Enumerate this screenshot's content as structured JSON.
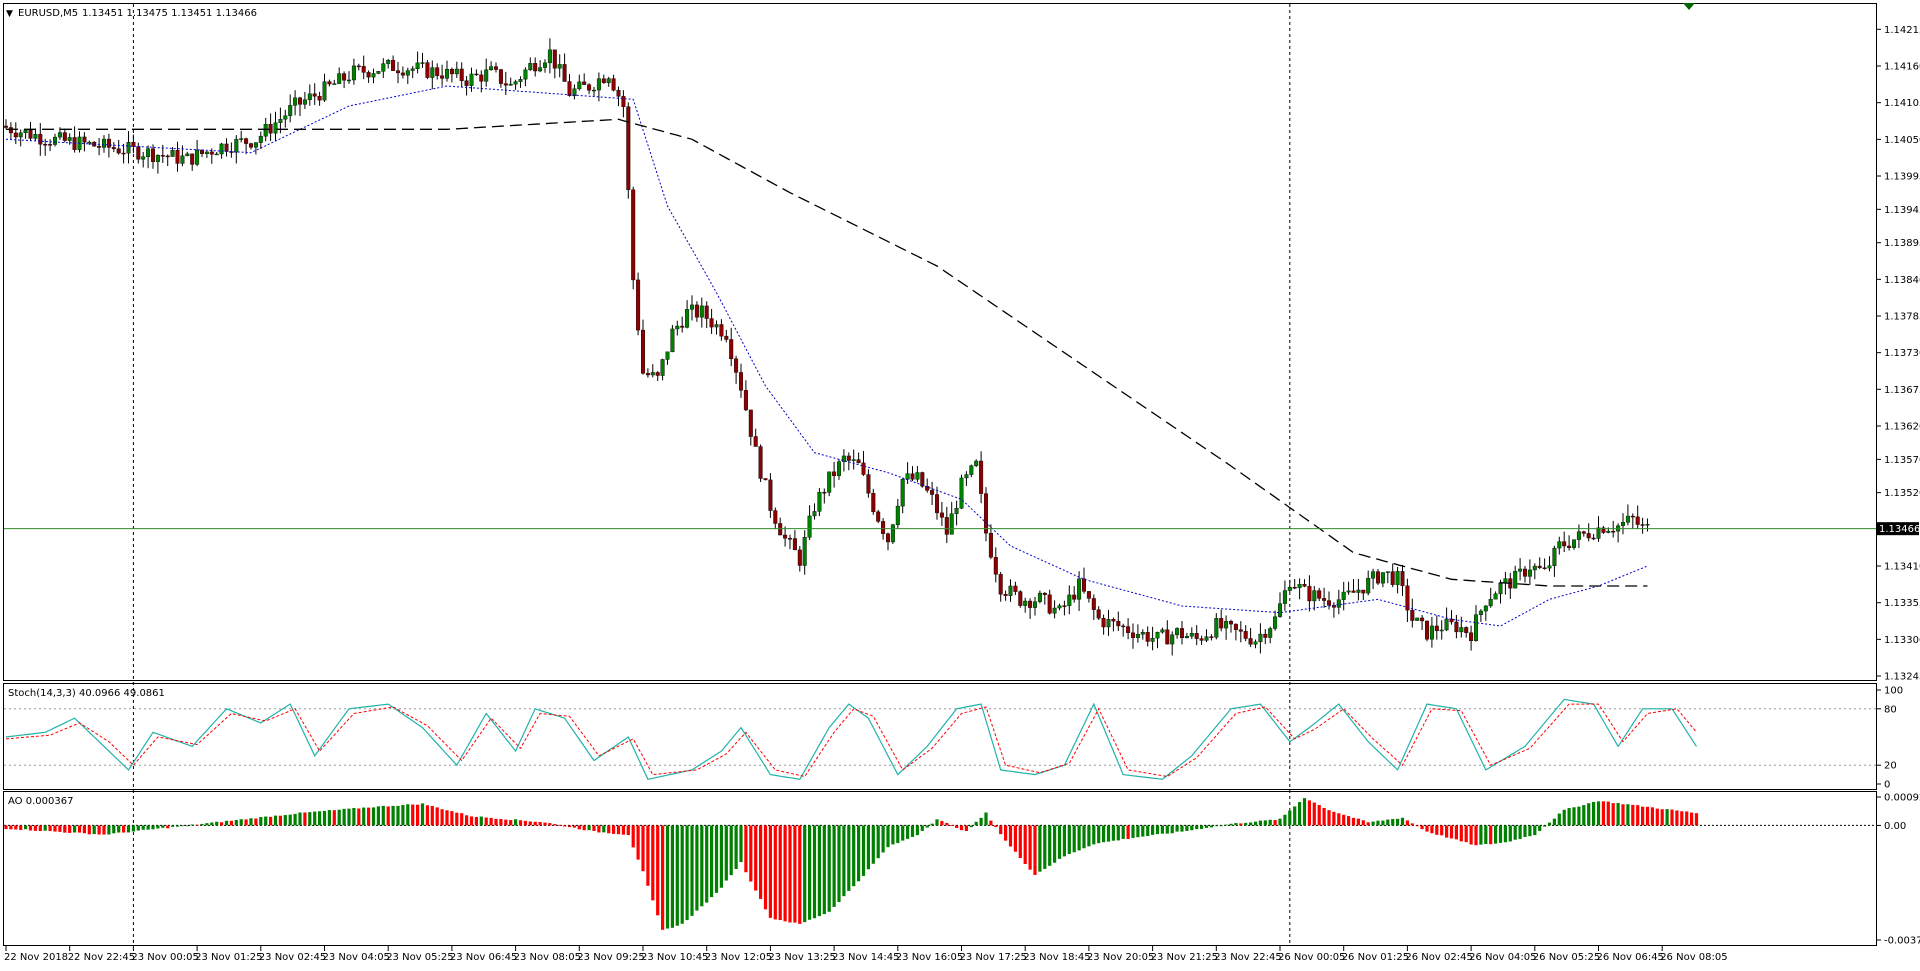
{
  "window": {
    "symbol_header": "EURUSD,M5",
    "ohlc_header": "1.13451 1.13475 1.13451 1.13466"
  },
  "colors": {
    "bull_candle": "#008000",
    "bear_candle": "#8b0000",
    "sma_fast": "#0000cc",
    "sma_slow": "#000000",
    "bid_line": "#2e8b2e",
    "stoch_main": "#20b2aa",
    "stoch_signal": "#ff0000",
    "ao_up": "#008000",
    "ao_down": "#ff0000",
    "trade_marker": "#006400"
  },
  "chart_data": {
    "type": "candlestick",
    "instrument": "EURUSD",
    "timeframe": "M5",
    "price_axis": {
      "ticks": [
        "1.14215",
        "1.14160",
        "1.14105",
        "1.14050",
        "1.13995",
        "1.13945",
        "1.13895",
        "1.13840",
        "1.13785",
        "1.13730",
        "1.13675",
        "1.13620",
        "1.13570",
        "1.13520",
        "1.13410",
        "1.13355",
        "1.13300",
        "1.13245"
      ],
      "current_price": "1.13466",
      "range": [
        1.13245,
        1.1425
      ]
    },
    "time_axis": {
      "labels": [
        "22 Nov 2018",
        "22 Nov 22:45",
        "23 Nov 00:05",
        "23 Nov 01:25",
        "23 Nov 02:45",
        "23 Nov 04:05",
        "23 Nov 05:25",
        "23 Nov 06:45",
        "23 Nov 08:05",
        "23 Nov 09:25",
        "23 Nov 10:45",
        "23 Nov 12:05",
        "23 Nov 13:25",
        "23 Nov 14:45",
        "23 Nov 16:05",
        "23 Nov 17:25",
        "23 Nov 18:45",
        "23 Nov 20:05",
        "23 Nov 21:25",
        "23 Nov 22:45",
        "26 Nov 00:05",
        "26 Nov 01:25",
        "26 Nov 02:45",
        "26 Nov 04:05",
        "26 Nov 05:25",
        "26 Nov 06:45",
        "26 Nov 08:05"
      ],
      "period_separators": [
        "23 Nov 00:00",
        "26 Nov 00:00"
      ]
    },
    "price_path": [
      [
        0,
        1.1407
      ],
      [
        10,
        1.1405
      ],
      [
        20,
        1.1404
      ],
      [
        30,
        1.1403
      ],
      [
        38,
        1.1402
      ],
      [
        45,
        1.1404
      ],
      [
        52,
        1.1405
      ],
      [
        60,
        1.141
      ],
      [
        65,
        1.1412
      ],
      [
        72,
        1.1415
      ],
      [
        80,
        1.1416
      ],
      [
        90,
        1.1415
      ],
      [
        95,
        1.1414
      ],
      [
        100,
        1.1415
      ],
      [
        104,
        1.1413
      ],
      [
        108,
        1.1416
      ],
      [
        112,
        1.1418
      ],
      [
        116,
        1.1412
      ],
      [
        120,
        1.1413
      ],
      [
        124,
        1.1415
      ],
      [
        127,
        1.141
      ],
      [
        129,
        1.1384
      ],
      [
        131,
        1.137
      ],
      [
        134,
        1.1369
      ],
      [
        137,
        1.1376
      ],
      [
        140,
        1.1379
      ],
      [
        143,
        1.1379
      ],
      [
        146,
        1.1377
      ],
      [
        148,
        1.1376
      ],
      [
        151,
        1.1368
      ],
      [
        154,
        1.1358
      ],
      [
        157,
        1.135
      ],
      [
        160,
        1.1345
      ],
      [
        163,
        1.1342
      ],
      [
        166,
        1.135
      ],
      [
        169,
        1.1354
      ],
      [
        172,
        1.1357
      ],
      [
        175,
        1.1356
      ],
      [
        178,
        1.135
      ],
      [
        181,
        1.1345
      ],
      [
        184,
        1.1354
      ],
      [
        187,
        1.1354
      ],
      [
        190,
        1.1351
      ],
      [
        193,
        1.1346
      ],
      [
        196,
        1.1353
      ],
      [
        199,
        1.1356
      ],
      [
        201,
        1.1346
      ],
      [
        204,
        1.1338
      ],
      [
        208,
        1.1336
      ],
      [
        212,
        1.1336
      ],
      [
        216,
        1.1334
      ],
      [
        220,
        1.1338
      ],
      [
        224,
        1.1333
      ],
      [
        228,
        1.1332
      ],
      [
        232,
        1.1331
      ],
      [
        236,
        1.133
      ],
      [
        240,
        1.1331
      ],
      [
        244,
        1.133
      ],
      [
        248,
        1.1332
      ],
      [
        252,
        1.1331
      ],
      [
        256,
        1.133
      ],
      [
        260,
        1.1333
      ],
      [
        263,
        1.1339
      ],
      [
        266,
        1.1337
      ],
      [
        270,
        1.1336
      ],
      [
        274,
        1.1336
      ],
      [
        278,
        1.1338
      ],
      [
        282,
        1.134
      ],
      [
        285,
        1.1339
      ],
      [
        288,
        1.1333
      ],
      [
        291,
        1.1331
      ],
      [
        294,
        1.1332
      ],
      [
        297,
        1.1332
      ],
      [
        300,
        1.1331
      ],
      [
        303,
        1.1336
      ],
      [
        306,
        1.1338
      ],
      [
        309,
        1.1339
      ],
      [
        312,
        1.1341
      ],
      [
        315,
        1.134
      ],
      [
        318,
        1.1344
      ],
      [
        321,
        1.1345
      ],
      [
        324,
        1.1346
      ],
      [
        327,
        1.1347
      ],
      [
        330,
        1.1347
      ],
      [
        333,
        1.1348
      ],
      [
        335,
        1.13466
      ]
    ],
    "sma_fast_path": [
      [
        0,
        1.1405
      ],
      [
        50,
        1.1403
      ],
      [
        70,
        1.141
      ],
      [
        90,
        1.1413
      ],
      [
        128,
        1.1411
      ],
      [
        135,
        1.1395
      ],
      [
        145,
        1.1382
      ],
      [
        155,
        1.1368
      ],
      [
        165,
        1.1358
      ],
      [
        180,
        1.1355
      ],
      [
        195,
        1.1351
      ],
      [
        205,
        1.1344
      ],
      [
        220,
        1.1339
      ],
      [
        240,
        1.1335
      ],
      [
        260,
        1.1334
      ],
      [
        280,
        1.1336
      ],
      [
        295,
        1.1333
      ],
      [
        305,
        1.1332
      ],
      [
        315,
        1.1336
      ],
      [
        325,
        1.1338
      ],
      [
        335,
        1.1341
      ]
    ],
    "sma_slow_path": [
      [
        0,
        1.14065
      ],
      [
        60,
        1.14065
      ],
      [
        90,
        1.14065
      ],
      [
        125,
        1.1408
      ],
      [
        140,
        1.1405
      ],
      [
        160,
        1.1397
      ],
      [
        190,
        1.1386
      ],
      [
        220,
        1.1371
      ],
      [
        250,
        1.1356
      ],
      [
        275,
        1.1343
      ],
      [
        295,
        1.1339
      ],
      [
        315,
        1.1338
      ],
      [
        335,
        1.1338
      ]
    ],
    "stochastic": {
      "label": "Stoch(14,3,3) 40.0966 49.0861",
      "levels_text": [
        "100",
        "80",
        "20",
        "0"
      ],
      "levels": [
        100,
        80,
        20,
        0
      ],
      "main_path": [
        [
          0,
          50
        ],
        [
          8,
          55
        ],
        [
          14,
          70
        ],
        [
          20,
          40
        ],
        [
          25,
          15
        ],
        [
          30,
          55
        ],
        [
          38,
          40
        ],
        [
          45,
          80
        ],
        [
          52,
          65
        ],
        [
          58,
          85
        ],
        [
          63,
          30
        ],
        [
          70,
          80
        ],
        [
          78,
          85
        ],
        [
          85,
          60
        ],
        [
          92,
          20
        ],
        [
          98,
          75
        ],
        [
          104,
          35
        ],
        [
          108,
          80
        ],
        [
          114,
          70
        ],
        [
          120,
          25
        ],
        [
          127,
          50
        ],
        [
          131,
          5
        ],
        [
          140,
          15
        ],
        [
          146,
          35
        ],
        [
          150,
          60
        ],
        [
          156,
          10
        ],
        [
          162,
          5
        ],
        [
          168,
          60
        ],
        [
          172,
          85
        ],
        [
          176,
          70
        ],
        [
          182,
          10
        ],
        [
          188,
          40
        ],
        [
          194,
          80
        ],
        [
          199,
          85
        ],
        [
          203,
          15
        ],
        [
          210,
          10
        ],
        [
          216,
          20
        ],
        [
          222,
          85
        ],
        [
          228,
          10
        ],
        [
          236,
          5
        ],
        [
          242,
          30
        ],
        [
          250,
          80
        ],
        [
          256,
          85
        ],
        [
          262,
          45
        ],
        [
          266,
          60
        ],
        [
          272,
          85
        ],
        [
          278,
          45
        ],
        [
          284,
          15
        ],
        [
          290,
          85
        ],
        [
          296,
          80
        ],
        [
          302,
          15
        ],
        [
          310,
          40
        ],
        [
          318,
          90
        ],
        [
          324,
          85
        ],
        [
          329,
          40
        ],
        [
          334,
          80
        ],
        [
          340,
          80
        ],
        [
          345,
          40
        ]
      ],
      "signal_path": [
        [
          0,
          48
        ],
        [
          9,
          52
        ],
        [
          15,
          65
        ],
        [
          21,
          45
        ],
        [
          26,
          20
        ],
        [
          31,
          50
        ],
        [
          39,
          42
        ],
        [
          46,
          75
        ],
        [
          53,
          67
        ],
        [
          59,
          80
        ],
        [
          64,
          35
        ],
        [
          71,
          75
        ],
        [
          79,
          82
        ],
        [
          86,
          62
        ],
        [
          93,
          25
        ],
        [
          99,
          70
        ],
        [
          105,
          38
        ],
        [
          109,
          75
        ],
        [
          115,
          72
        ],
        [
          121,
          30
        ],
        [
          128,
          48
        ],
        [
          132,
          10
        ],
        [
          141,
          15
        ],
        [
          147,
          32
        ],
        [
          151,
          55
        ],
        [
          157,
          15
        ],
        [
          163,
          8
        ],
        [
          169,
          55
        ],
        [
          173,
          80
        ],
        [
          177,
          72
        ],
        [
          183,
          15
        ],
        [
          189,
          38
        ],
        [
          195,
          75
        ],
        [
          200,
          82
        ],
        [
          204,
          20
        ],
        [
          211,
          12
        ],
        [
          217,
          22
        ],
        [
          223,
          80
        ],
        [
          229,
          15
        ],
        [
          237,
          8
        ],
        [
          243,
          28
        ],
        [
          251,
          75
        ],
        [
          257,
          82
        ],
        [
          263,
          48
        ],
        [
          267,
          58
        ],
        [
          273,
          80
        ],
        [
          279,
          48
        ],
        [
          285,
          20
        ],
        [
          291,
          80
        ],
        [
          297,
          78
        ],
        [
          303,
          20
        ],
        [
          311,
          38
        ],
        [
          319,
          85
        ],
        [
          325,
          85
        ],
        [
          330,
          45
        ],
        [
          335,
          75
        ],
        [
          341,
          80
        ],
        [
          346,
          49
        ]
      ]
    },
    "awesome_oscillator": {
      "label": "AO 0.000367",
      "levels_text": [
        "0.000921",
        "0.00",
        "-0.003714"
      ],
      "range": [
        -0.003714,
        0.000921
      ],
      "profile": [
        [
          0,
          -0.0001
        ],
        [
          20,
          -0.0003
        ],
        [
          40,
          5e-05
        ],
        [
          60,
          0.0004
        ],
        [
          75,
          0.0006
        ],
        [
          85,
          0.0007
        ],
        [
          95,
          0.0003
        ],
        [
          110,
          0.0001
        ],
        [
          120,
          -0.0002
        ],
        [
          127,
          -0.0003
        ],
        [
          130,
          -0.0015
        ],
        [
          134,
          -0.0034
        ],
        [
          138,
          -0.0032
        ],
        [
          145,
          -0.0022
        ],
        [
          150,
          -0.0012
        ],
        [
          156,
          -0.003
        ],
        [
          162,
          -0.0032
        ],
        [
          168,
          -0.0028
        ],
        [
          174,
          -0.0018
        ],
        [
          180,
          -0.0007
        ],
        [
          186,
          -0.0003
        ],
        [
          190,
          0.0002
        ],
        [
          196,
          -0.0002
        ],
        [
          200,
          0.0004
        ],
        [
          204,
          -0.0005
        ],
        [
          210,
          -0.0016
        ],
        [
          216,
          -0.001
        ],
        [
          222,
          -0.0006
        ],
        [
          230,
          -0.0004
        ],
        [
          240,
          -0.0002
        ],
        [
          250,
          5e-05
        ],
        [
          260,
          0.0002
        ],
        [
          265,
          0.0009
        ],
        [
          270,
          0.0005
        ],
        [
          278,
          0.0001
        ],
        [
          285,
          0.00025
        ],
        [
          290,
          -0.0002
        ],
        [
          300,
          -0.00065
        ],
        [
          306,
          -0.00055
        ],
        [
          312,
          -0.0003
        ],
        [
          318,
          0.0005
        ],
        [
          325,
          0.0008
        ],
        [
          330,
          0.0007
        ],
        [
          335,
          0.0006
        ],
        [
          345,
          0.0004
        ]
      ]
    }
  }
}
